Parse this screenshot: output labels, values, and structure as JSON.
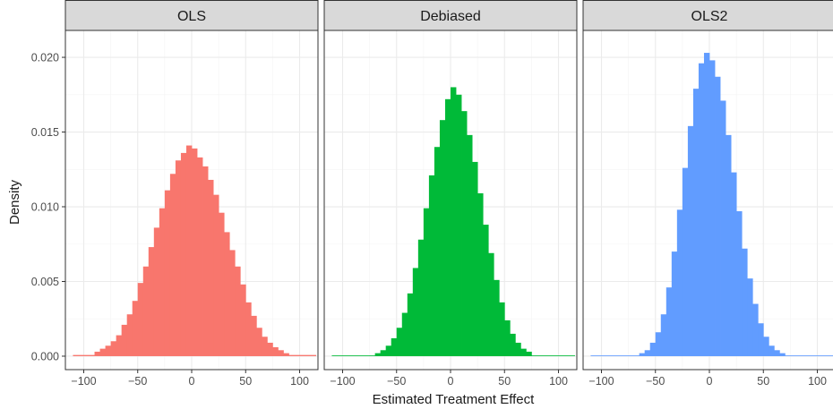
{
  "chart_data": {
    "type": "bar",
    "subtype": "faceted-histogram",
    "xlabel": "Estimated Treatment Effect",
    "ylabel": "Density",
    "xlim": [
      -117,
      117
    ],
    "ylim": [
      -0.0009,
      0.0218
    ],
    "x_ticks": [
      -100,
      -50,
      0,
      50,
      100
    ],
    "x_tick_labels": [
      "−100",
      "−50",
      "0",
      "50",
      "100"
    ],
    "y_ticks": [
      0,
      0.005,
      0.01,
      0.015,
      0.02
    ],
    "y_tick_labels": [
      "0.000",
      "0.005",
      "0.010",
      "0.015",
      "0.020"
    ],
    "grid": true,
    "legend": "none",
    "panels": [
      {
        "name": "OLS",
        "color": "#F8766D",
        "bin_edges": [
          -110,
          -90,
          -85,
          -80,
          -75,
          -70,
          -65,
          -60,
          -55,
          -50,
          -45,
          -40,
          -35,
          -30,
          -25,
          -20,
          -15,
          -10,
          -5,
          0,
          5,
          10,
          15,
          20,
          25,
          30,
          35,
          40,
          45,
          50,
          55,
          60,
          65,
          70,
          75,
          80,
          85,
          90,
          115
        ],
        "values": [
          8e-05,
          0.0003,
          0.0005,
          0.0007,
          0.001,
          0.0014,
          0.0021,
          0.0028,
          0.0037,
          0.0049,
          0.006,
          0.0073,
          0.0086,
          0.0099,
          0.0111,
          0.0122,
          0.0131,
          0.0136,
          0.0141,
          0.0139,
          0.0133,
          0.0127,
          0.0118,
          0.0108,
          0.0096,
          0.0083,
          0.0071,
          0.006,
          0.0048,
          0.0036,
          0.0027,
          0.0019,
          0.0013,
          0.0009,
          0.0006,
          0.0004,
          0.0002,
          8e-05
        ]
      },
      {
        "name": "Debiased",
        "color": "#00BA38",
        "bin_edges": [
          -110,
          -70,
          -65,
          -60,
          -55,
          -50,
          -45,
          -40,
          -35,
          -30,
          -25,
          -20,
          -15,
          -10,
          -5,
          0,
          5,
          10,
          15,
          20,
          25,
          30,
          35,
          40,
          45,
          50,
          55,
          60,
          65,
          70,
          75,
          115
        ],
        "values": [
          5e-05,
          0.0002,
          0.0004,
          0.0007,
          0.0012,
          0.0019,
          0.0029,
          0.0042,
          0.0059,
          0.0078,
          0.0099,
          0.0121,
          0.014,
          0.0158,
          0.0172,
          0.018,
          0.0175,
          0.0164,
          0.0148,
          0.013,
          0.0109,
          0.0088,
          0.0069,
          0.0051,
          0.0036,
          0.0024,
          0.0015,
          0.0009,
          0.0005,
          0.0003,
          5e-05
        ]
      },
      {
        "name": "OLS2",
        "color": "#619CFF",
        "bin_edges": [
          -110,
          -65,
          -60,
          -55,
          -50,
          -45,
          -40,
          -35,
          -30,
          -25,
          -20,
          -15,
          -10,
          -5,
          0,
          5,
          10,
          15,
          20,
          25,
          30,
          35,
          40,
          45,
          50,
          55,
          60,
          65,
          70,
          115
        ],
        "values": [
          5e-05,
          0.0002,
          0.0004,
          0.0009,
          0.0016,
          0.0028,
          0.0046,
          0.007,
          0.0098,
          0.0126,
          0.0154,
          0.0179,
          0.0196,
          0.0203,
          0.0198,
          0.0187,
          0.0171,
          0.0148,
          0.0123,
          0.0097,
          0.0072,
          0.0052,
          0.0035,
          0.0022,
          0.0013,
          0.0007,
          0.0004,
          0.0002,
          5e-05
        ]
      }
    ]
  }
}
